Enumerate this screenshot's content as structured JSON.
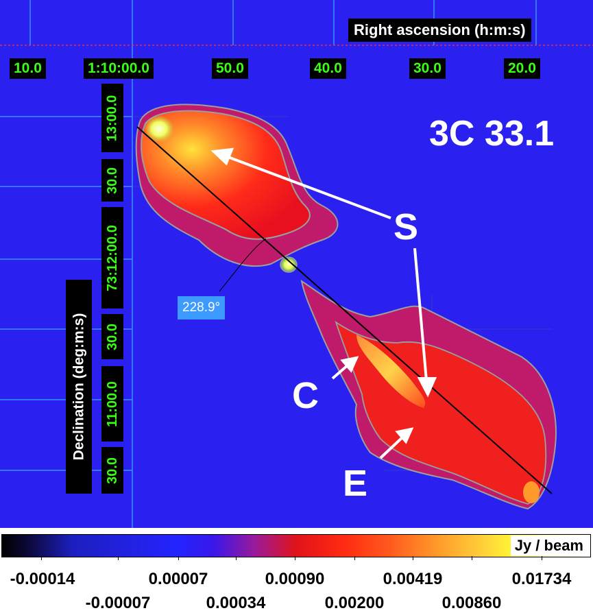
{
  "image": {
    "source_name": "3C 33.1",
    "features": {
      "s": "S",
      "c": "C",
      "e": "E"
    },
    "angle_label": "228.9°",
    "palette": {
      "background": "#2a20f0",
      "lobe": "#ff2a1a",
      "core": "#ffff66",
      "contour": "#9aa0a0"
    }
  },
  "axes": {
    "ra_title": "Right ascension (h:m:s)",
    "dec_title": "Declination (deg:m:s)",
    "ra_ticks": [
      "10.0",
      "1:10:00.0",
      "50.0",
      "40.0",
      "30.0",
      "20.0"
    ],
    "dec_ticks": [
      "13:00.0",
      "30.0",
      "73:12:00.0",
      "30.0",
      "11:00.0",
      "30.0"
    ]
  },
  "colorbar": {
    "unit": "Jy / beam",
    "labels_top": [
      "-0.00014",
      "0.00007",
      "0.00090",
      "0.00419",
      "0.01734"
    ],
    "labels_bottom": [
      "-0.00007",
      "0.00034",
      "0.00200",
      "0.00860"
    ]
  }
}
